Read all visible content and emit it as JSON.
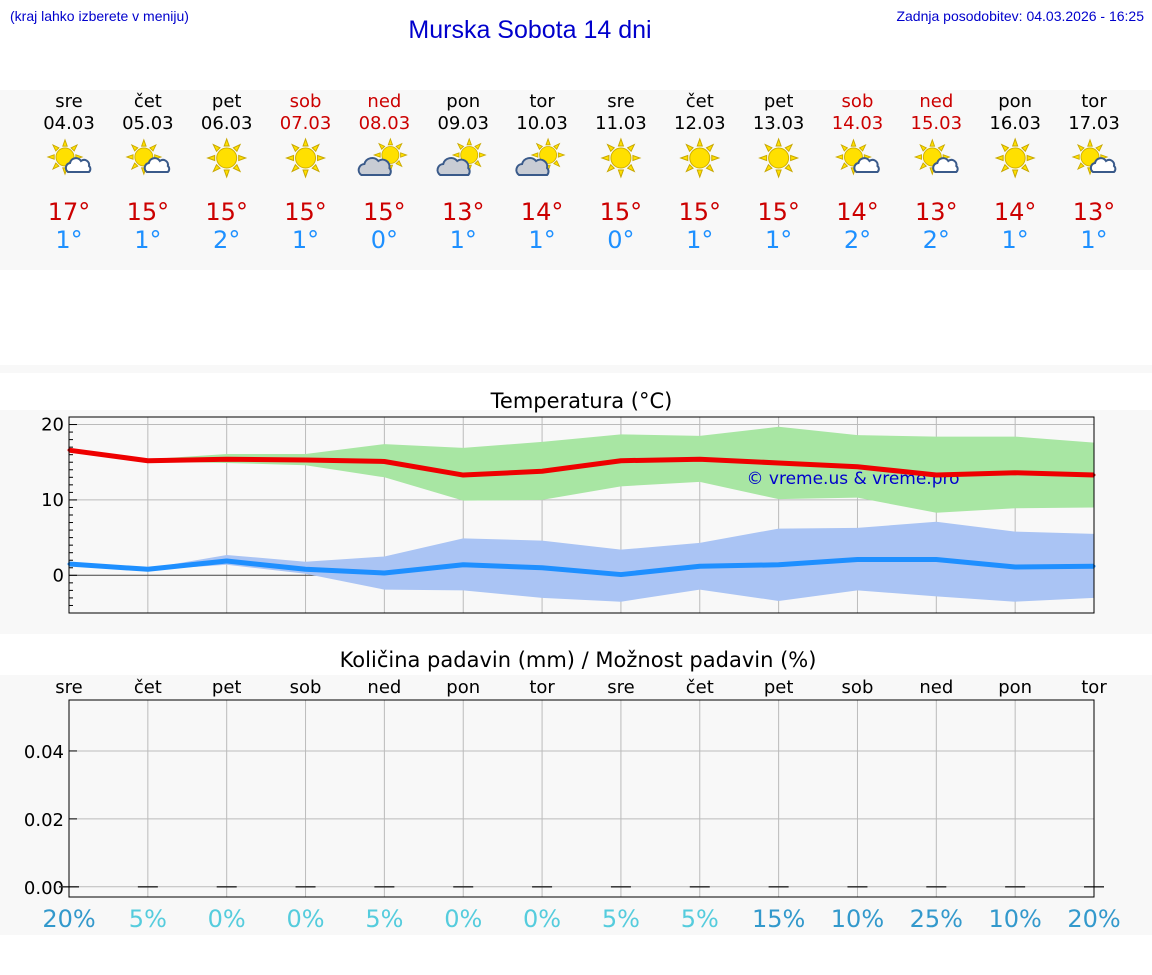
{
  "header": {
    "hint": "(kraj lahko izberete v meniju)",
    "title": "Murska Sobota 14 dni",
    "updated": "Zadnja posodobitev: 04.03.2026 - 16:25"
  },
  "colors": {
    "weekday": "#000000",
    "weekend": "#cc0000",
    "tmax": "#cc0000",
    "tmin": "#1e90ff",
    "max_line": "#ee0000",
    "min_line": "#1e8fff",
    "max_band": "#a8e6a3",
    "min_band": "#aac4f4",
    "pct_high": "#3399cc",
    "pct_low": "#55ccdd"
  },
  "days": [
    {
      "dow": "sre",
      "date": "04.03",
      "weekend": false,
      "icon": "sun-cloud-icon",
      "tmax": "17°",
      "tmin": "1°"
    },
    {
      "dow": "čet",
      "date": "05.03",
      "weekend": false,
      "icon": "sun-cloud-icon",
      "tmax": "15°",
      "tmin": "1°"
    },
    {
      "dow": "pet",
      "date": "06.03",
      "weekend": false,
      "icon": "sun-icon",
      "tmax": "15°",
      "tmin": "2°"
    },
    {
      "dow": "sob",
      "date": "07.03",
      "weekend": true,
      "icon": "sun-icon",
      "tmax": "15°",
      "tmin": "1°"
    },
    {
      "dow": "ned",
      "date": "08.03",
      "weekend": true,
      "icon": "cloud-sun-icon",
      "tmax": "15°",
      "tmin": "0°"
    },
    {
      "dow": "pon",
      "date": "09.03",
      "weekend": false,
      "icon": "cloud-sun-icon",
      "tmax": "13°",
      "tmin": "1°"
    },
    {
      "dow": "tor",
      "date": "10.03",
      "weekend": false,
      "icon": "cloud-sun-icon",
      "tmax": "14°",
      "tmin": "1°"
    },
    {
      "dow": "sre",
      "date": "11.03",
      "weekend": false,
      "icon": "sun-icon",
      "tmax": "15°",
      "tmin": "0°"
    },
    {
      "dow": "čet",
      "date": "12.03",
      "weekend": false,
      "icon": "sun-icon",
      "tmax": "15°",
      "tmin": "1°"
    },
    {
      "dow": "pet",
      "date": "13.03",
      "weekend": false,
      "icon": "sun-icon",
      "tmax": "15°",
      "tmin": "1°"
    },
    {
      "dow": "sob",
      "date": "14.03",
      "weekend": true,
      "icon": "sun-cloud-icon",
      "tmax": "14°",
      "tmin": "2°"
    },
    {
      "dow": "ned",
      "date": "15.03",
      "weekend": true,
      "icon": "sun-cloud-icon",
      "tmax": "13°",
      "tmin": "2°"
    },
    {
      "dow": "pon",
      "date": "16.03",
      "weekend": false,
      "icon": "sun-icon",
      "tmax": "14°",
      "tmin": "1°"
    },
    {
      "dow": "tor",
      "date": "17.03",
      "weekend": false,
      "icon": "sun-cloud-icon",
      "tmax": "13°",
      "tmin": "1°"
    }
  ],
  "chart_data": [
    {
      "type": "line",
      "title": "Temperatura (°C)",
      "watermark": "© vreme.us & vreme.pro",
      "ylim": [
        -5,
        21
      ],
      "yticks": [
        0,
        10,
        20
      ],
      "grid": true,
      "x": [
        0,
        1,
        2,
        3,
        4,
        5,
        6,
        7,
        8,
        9,
        10,
        11,
        12,
        13
      ],
      "series": [
        {
          "name": "max",
          "values": [
            16.6,
            15.2,
            15.4,
            15.3,
            15.1,
            13.3,
            13.8,
            15.2,
            15.4,
            14.9,
            14.4,
            13.3,
            13.6,
            13.3
          ]
        },
        {
          "name": "max_low",
          "values": [
            16.6,
            15.1,
            14.9,
            14.6,
            13.0,
            9.9,
            10.0,
            11.8,
            12.4,
            10.1,
            10.3,
            8.3,
            8.9,
            9.0
          ]
        },
        {
          "name": "max_high",
          "values": [
            16.6,
            15.4,
            16.1,
            16.1,
            17.4,
            16.9,
            17.7,
            18.7,
            18.5,
            19.7,
            18.6,
            18.4,
            18.4,
            17.6
          ]
        },
        {
          "name": "min",
          "values": [
            1.5,
            0.8,
            1.9,
            0.8,
            0.3,
            1.4,
            1.0,
            0.1,
            1.2,
            1.4,
            2.1,
            2.1,
            1.1,
            1.2
          ]
        },
        {
          "name": "min_low",
          "values": [
            1.5,
            0.7,
            1.4,
            0.2,
            -1.9,
            -2.0,
            -3.0,
            -3.5,
            -1.9,
            -3.4,
            -2.0,
            -2.8,
            -3.5,
            -3.0
          ]
        },
        {
          "name": "min_high",
          "values": [
            1.5,
            0.9,
            2.7,
            1.8,
            2.5,
            4.9,
            4.6,
            3.4,
            4.3,
            6.2,
            6.3,
            7.1,
            5.8,
            5.5
          ]
        }
      ]
    },
    {
      "type": "bar",
      "title": "Količina padavin (mm) / Možnost padavin (%)",
      "categories": [
        "sre",
        "čet",
        "pet",
        "sob",
        "ned",
        "pon",
        "tor",
        "sre",
        "čet",
        "pet",
        "sob",
        "ned",
        "pon",
        "tor"
      ],
      "values": [
        0,
        0,
        0,
        0,
        0,
        0,
        0,
        0,
        0,
        0,
        0,
        0,
        0,
        0
      ],
      "ylim": [
        -0.003,
        0.055
      ],
      "yticks": [
        "0.00",
        "0.02",
        "0.04"
      ],
      "ytick_values": [
        0,
        0.02,
        0.04
      ],
      "chance": [
        "20%",
        "5%",
        "0%",
        "0%",
        "5%",
        "0%",
        "0%",
        "5%",
        "5%",
        "15%",
        "10%",
        "25%",
        "10%",
        "20%"
      ],
      "chance_values": [
        20,
        5,
        0,
        0,
        5,
        0,
        0,
        5,
        5,
        15,
        10,
        25,
        10,
        20
      ]
    }
  ]
}
